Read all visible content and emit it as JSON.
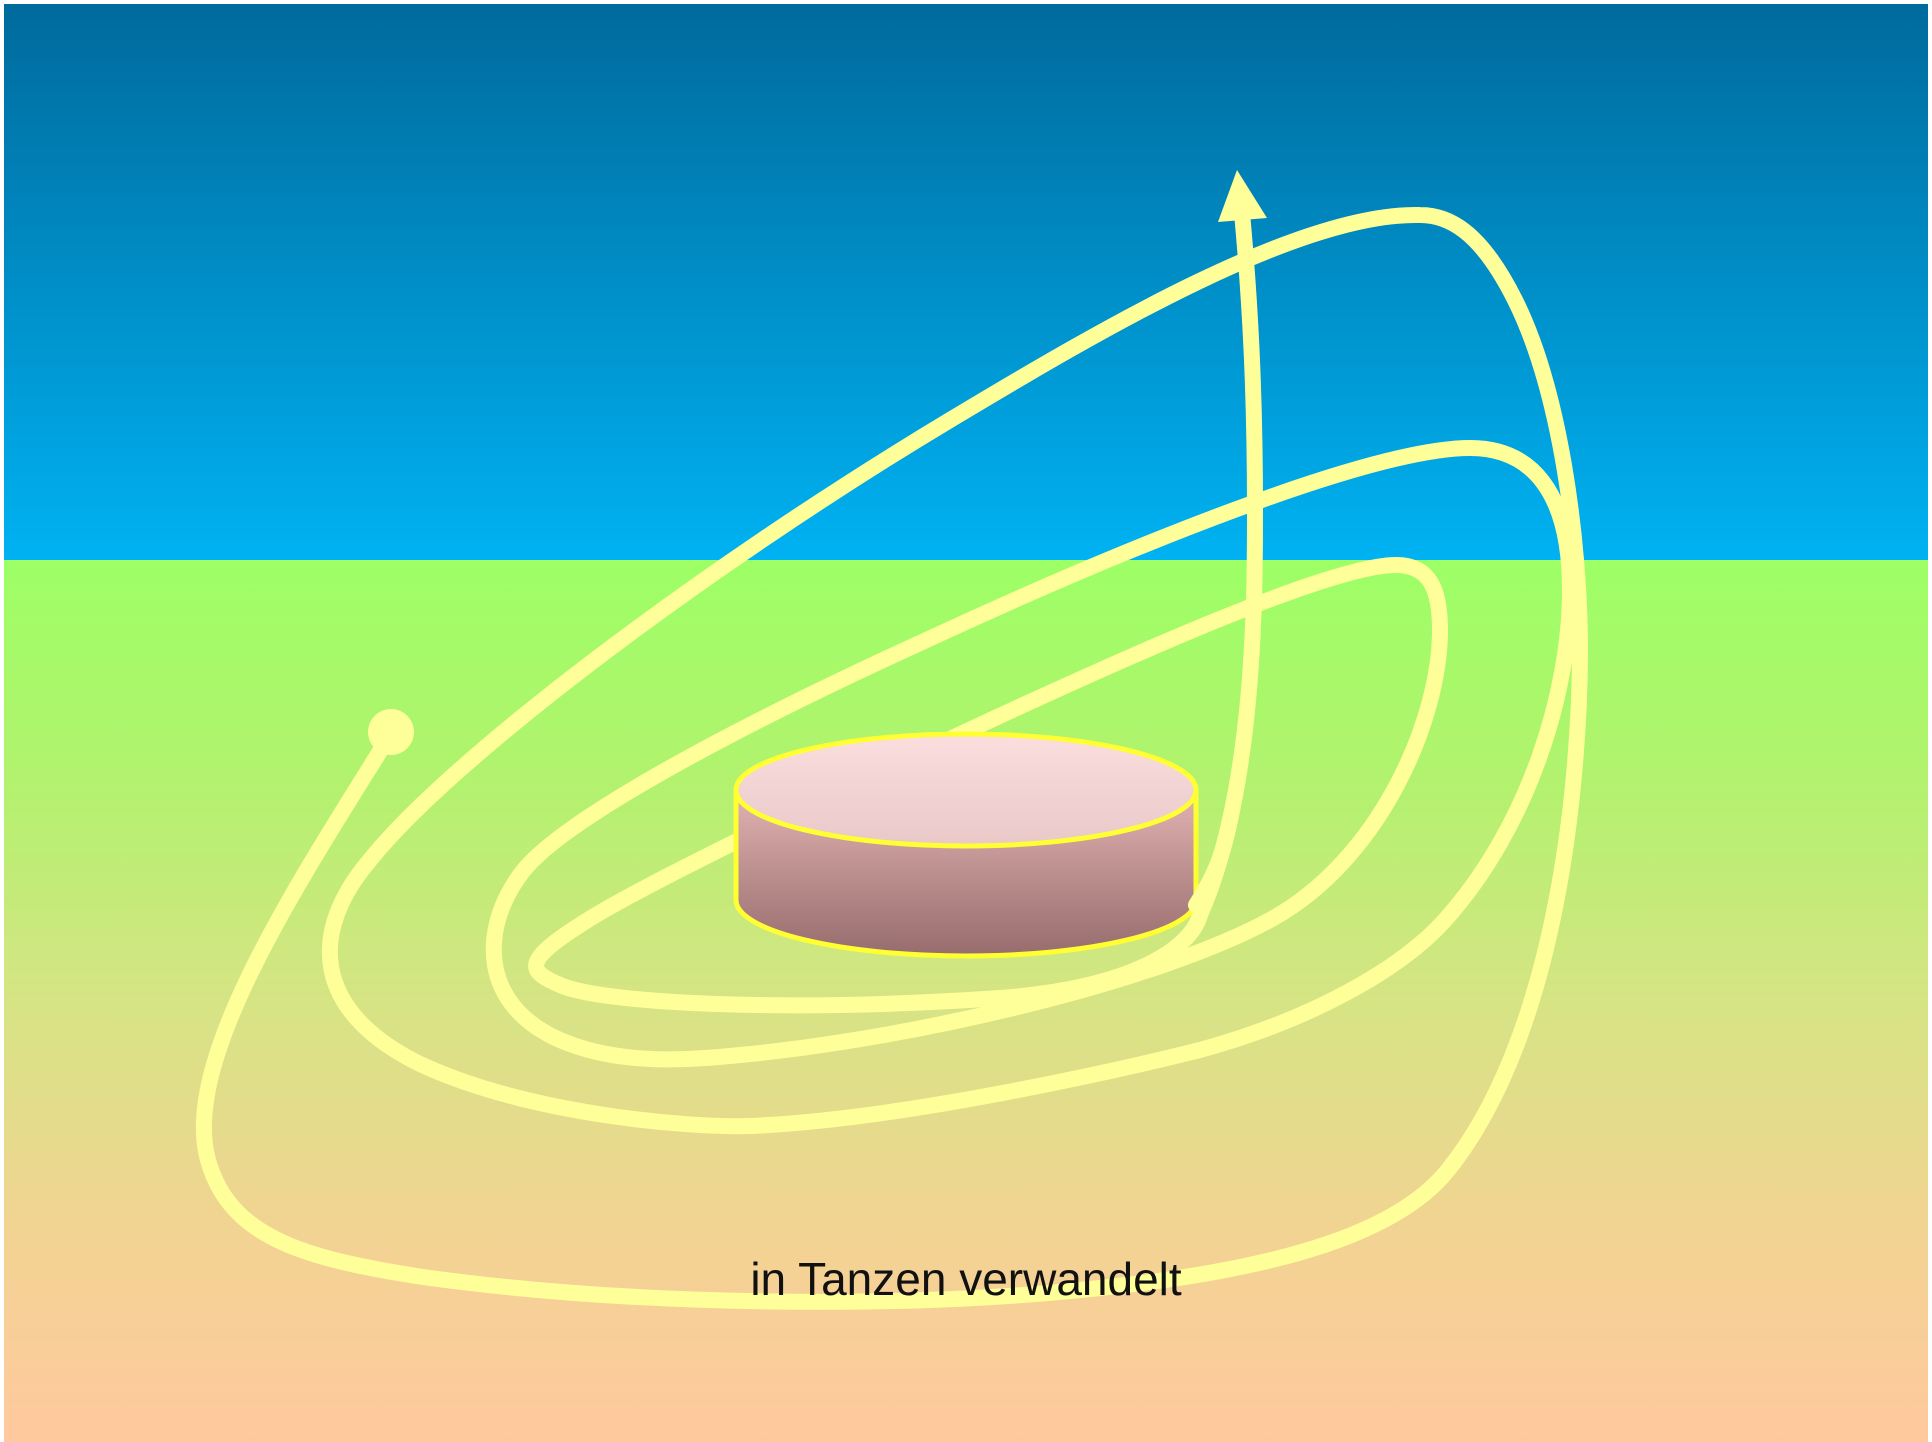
{
  "caption": "in Tanzen verwandelt",
  "colors": {
    "sky_top": "#006a9c",
    "sky_bottom": "#00b2f2",
    "ground_top": "#9dff66",
    "ground_mid": "#c8ea7a",
    "ground_bottom": "#ffc99e",
    "path": "#ffff99",
    "cylinder_top": "#f8dada",
    "cylinder_side_top": "#dcaaaa",
    "cylinder_side_bottom": "#9a7070",
    "cylinder_outline": "#ffff33"
  },
  "icons": {
    "path_start": "dot",
    "path_end": "arrowhead"
  }
}
